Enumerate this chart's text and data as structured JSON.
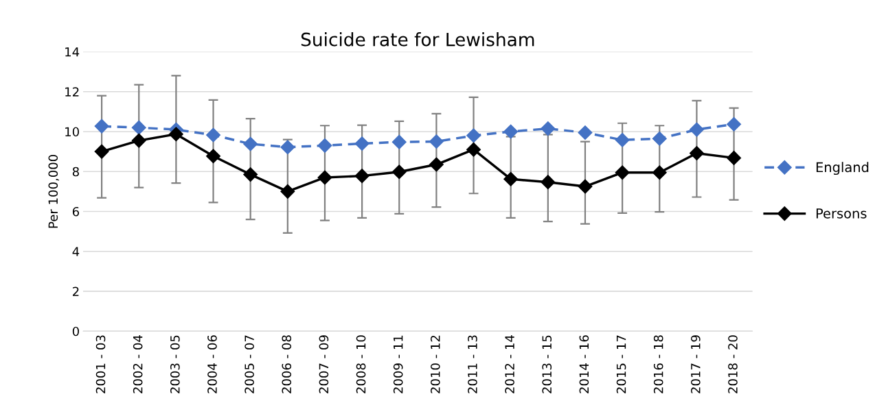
{
  "chart_data": {
    "type": "line",
    "title": "Suicide rate for Lewisham",
    "ylabel": "Per 100,000",
    "categories": [
      "2001 - 03",
      "2002 - 04",
      "2003 - 05",
      "2004 - 06",
      "2005 - 07",
      "2006 - 08",
      "2007 - 09",
      "2008 - 10",
      "2009 - 11",
      "2010 - 12",
      "2011 - 13",
      "2012 - 14",
      "2013 - 15",
      "2014 - 16",
      "2015 - 17",
      "2016 - 18",
      "2017 - 19",
      "2018 - 20"
    ],
    "series": [
      {
        "name": "England",
        "color": "#4472c4",
        "line_style": "dashed",
        "marker": "diamond",
        "values": [
          10.27,
          10.2,
          10.1,
          9.83,
          9.38,
          9.22,
          9.3,
          9.4,
          9.48,
          9.5,
          9.8,
          10.0,
          10.15,
          9.95,
          9.58,
          9.65,
          10.1,
          10.37
        ]
      },
      {
        "name": "Persons",
        "color": "#000000",
        "line_style": "solid",
        "marker": "diamond",
        "values": [
          9.0,
          9.55,
          9.87,
          8.77,
          7.85,
          7.0,
          7.7,
          7.78,
          7.98,
          8.35,
          9.1,
          7.62,
          7.47,
          7.25,
          7.95,
          7.95,
          8.92,
          8.68
        ],
        "errors": [
          [
            6.68,
            11.8
          ],
          [
            7.2,
            12.35
          ],
          [
            7.42,
            12.8
          ],
          [
            6.45,
            11.58
          ],
          [
            5.6,
            10.65
          ],
          [
            4.92,
            9.6
          ],
          [
            5.55,
            10.3
          ],
          [
            5.68,
            10.32
          ],
          [
            5.88,
            10.52
          ],
          [
            6.22,
            10.9
          ],
          [
            6.9,
            11.72
          ],
          [
            5.68,
            9.75
          ],
          [
            5.5,
            9.85
          ],
          [
            5.38,
            9.5
          ],
          [
            5.92,
            10.42
          ],
          [
            5.98,
            10.3
          ],
          [
            6.72,
            11.55
          ],
          [
            6.58,
            11.18
          ]
        ]
      }
    ],
    "ylim": [
      0,
      14
    ],
    "yticks": [
      0,
      2,
      4,
      6,
      8,
      10,
      12,
      14
    ],
    "grid": "y",
    "legend": "right"
  }
}
